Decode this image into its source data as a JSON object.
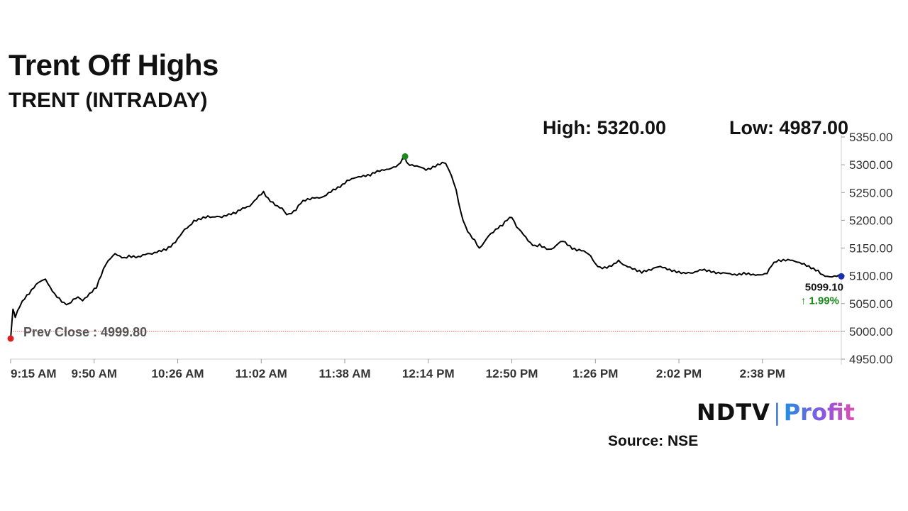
{
  "header": {
    "title": "Trent Off Highs",
    "subtitle": "TRENT (INTRADAY)"
  },
  "stats": {
    "high_label": "High: 5320.00",
    "low_label": "Low: 4987.00"
  },
  "chart_data": {
    "type": "line",
    "title": "Trent Off Highs",
    "subtitle": "TRENT (INTRADAY)",
    "xlabel": "",
    "ylabel": "",
    "x_ticks": [
      "9:15 AM",
      "9:50 AM",
      "10:26 AM",
      "11:02 AM",
      "11:38 AM",
      "12:14 PM",
      "12:50 PM",
      "1:26 PM",
      "2:02 PM",
      "2:38 PM"
    ],
    "y_ticks": [
      "4950.00",
      "5000.00",
      "5050.00",
      "5100.00",
      "5150.00",
      "5200.00",
      "5250.00",
      "5300.00",
      "5350.00"
    ],
    "ylim": [
      4950,
      5350
    ],
    "x_range_minutes": [
      0,
      358
    ],
    "grid": false,
    "series": [
      {
        "line_color": "#000000",
        "points": [
          [
            0,
            4987
          ],
          [
            1,
            5040
          ],
          [
            2,
            5025
          ],
          [
            4,
            5045
          ],
          [
            6,
            5058
          ],
          [
            8,
            5067
          ],
          [
            10,
            5078
          ],
          [
            12,
            5088
          ],
          [
            15,
            5094
          ],
          [
            17,
            5080
          ],
          [
            19,
            5068
          ],
          [
            21,
            5060
          ],
          [
            23,
            5052
          ],
          [
            25,
            5050
          ],
          [
            27,
            5058
          ],
          [
            29,
            5062
          ],
          [
            31,
            5055
          ],
          [
            33,
            5062
          ],
          [
            35,
            5070
          ],
          [
            37,
            5078
          ],
          [
            39,
            5100
          ],
          [
            41,
            5120
          ],
          [
            43,
            5131
          ],
          [
            45,
            5140
          ],
          [
            47,
            5136
          ],
          [
            49,
            5133
          ],
          [
            51,
            5137
          ],
          [
            53,
            5136
          ],
          [
            55,
            5135
          ],
          [
            57,
            5138
          ],
          [
            59,
            5140
          ],
          [
            61,
            5139
          ],
          [
            63,
            5142
          ],
          [
            65,
            5144
          ],
          [
            67,
            5146
          ],
          [
            69,
            5152
          ],
          [
            71,
            5160
          ],
          [
            73,
            5172
          ],
          [
            75,
            5184
          ],
          [
            77,
            5190
          ],
          [
            79,
            5200
          ],
          [
            81,
            5203
          ],
          [
            83,
            5206
          ],
          [
            85,
            5208
          ],
          [
            87,
            5206
          ],
          [
            89,
            5207
          ],
          [
            91,
            5205
          ],
          [
            93,
            5208
          ],
          [
            95,
            5210
          ],
          [
            97,
            5212
          ],
          [
            99,
            5218
          ],
          [
            101,
            5222
          ],
          [
            103,
            5225
          ],
          [
            105,
            5235
          ],
          [
            107,
            5245
          ],
          [
            109,
            5252
          ],
          [
            111,
            5240
          ],
          [
            113,
            5233
          ],
          [
            115,
            5226
          ],
          [
            117,
            5222
          ],
          [
            119,
            5210
          ],
          [
            121,
            5212
          ],
          [
            123,
            5218
          ],
          [
            125,
            5230
          ],
          [
            127,
            5235
          ],
          [
            129,
            5237
          ],
          [
            131,
            5240
          ],
          [
            133,
            5240
          ],
          [
            135,
            5243
          ],
          [
            137,
            5250
          ],
          [
            139,
            5256
          ],
          [
            141,
            5260
          ],
          [
            143,
            5265
          ],
          [
            145,
            5272
          ],
          [
            147,
            5275
          ],
          [
            149,
            5277
          ],
          [
            151,
            5278
          ],
          [
            153,
            5279
          ],
          [
            155,
            5280
          ],
          [
            157,
            5285
          ],
          [
            159,
            5288
          ],
          [
            161,
            5290
          ],
          [
            163,
            5292
          ],
          [
            165,
            5296
          ],
          [
            167,
            5300
          ],
          [
            169,
            5312
          ],
          [
            170,
            5315
          ],
          [
            171,
            5303
          ],
          [
            173,
            5300
          ],
          [
            175,
            5298
          ],
          [
            177,
            5295
          ],
          [
            179,
            5290
          ],
          [
            181,
            5292
          ],
          [
            183,
            5296
          ],
          [
            185,
            5300
          ],
          [
            187,
            5303
          ],
          [
            188,
            5298
          ],
          [
            190,
            5280
          ],
          [
            192,
            5255
          ],
          [
            194,
            5215
          ],
          [
            196,
            5190
          ],
          [
            198,
            5175
          ],
          [
            200,
            5165
          ],
          [
            202,
            5150
          ],
          [
            204,
            5160
          ],
          [
            206,
            5172
          ],
          [
            208,
            5178
          ],
          [
            210,
            5185
          ],
          [
            212,
            5190
          ],
          [
            214,
            5200
          ],
          [
            216,
            5205
          ],
          [
            218,
            5188
          ],
          [
            220,
            5180
          ],
          [
            222,
            5170
          ],
          [
            224,
            5160
          ],
          [
            226,
            5155
          ],
          [
            228,
            5157
          ],
          [
            230,
            5152
          ],
          [
            232,
            5148
          ],
          [
            234,
            5150
          ],
          [
            236,
            5158
          ],
          [
            238,
            5162
          ],
          [
            240,
            5155
          ],
          [
            242,
            5148
          ],
          [
            244,
            5145
          ],
          [
            246,
            5145
          ],
          [
            248,
            5142
          ],
          [
            250,
            5136
          ],
          [
            252,
            5122
          ],
          [
            254,
            5116
          ],
          [
            256,
            5116
          ],
          [
            258,
            5118
          ],
          [
            260,
            5122
          ],
          [
            262,
            5128
          ],
          [
            264,
            5120
          ],
          [
            266,
            5116
          ],
          [
            268,
            5112
          ],
          [
            270,
            5108
          ],
          [
            272,
            5105
          ],
          [
            274,
            5108
          ],
          [
            276,
            5110
          ],
          [
            278,
            5115
          ],
          [
            280,
            5117
          ],
          [
            282,
            5115
          ],
          [
            284,
            5112
          ],
          [
            286,
            5110
          ],
          [
            288,
            5108
          ],
          [
            290,
            5106
          ],
          [
            292,
            5106
          ],
          [
            294,
            5105
          ],
          [
            296,
            5108
          ],
          [
            298,
            5110
          ],
          [
            300,
            5108
          ],
          [
            302,
            5106
          ],
          [
            304,
            5104
          ],
          [
            306,
            5104
          ],
          [
            308,
            5105
          ],
          [
            310,
            5104
          ],
          [
            312,
            5103
          ],
          [
            314,
            5104
          ],
          [
            316,
            5106
          ],
          [
            318,
            5105
          ],
          [
            320,
            5103
          ],
          [
            322,
            5102
          ],
          [
            324,
            5102
          ],
          [
            326,
            5104
          ],
          [
            328,
            5118
          ],
          [
            330,
            5125
          ],
          [
            332,
            5126
          ],
          [
            334,
            5127
          ],
          [
            336,
            5128
          ],
          [
            338,
            5126
          ],
          [
            340,
            5124
          ],
          [
            342,
            5122
          ],
          [
            344,
            5118
          ],
          [
            346,
            5114
          ],
          [
            348,
            5110
          ],
          [
            350,
            5102
          ],
          [
            352,
            5099
          ],
          [
            354,
            5098
          ],
          [
            356,
            5099
          ],
          [
            358,
            5099.1
          ]
        ]
      }
    ],
    "reference_line": {
      "label": "Prev Close : 4999.80",
      "value": 4999.8,
      "color": "#e05050"
    },
    "last_price_label": "5099.10",
    "change_label": "↑ 1.99%",
    "change_color": "#1a8a1a",
    "marker_colors": {
      "high": "#1a8a1a",
      "low": "#e02020",
      "last": "#1a2fb0"
    },
    "high_point": [
      170,
      5315
    ],
    "low_point": [
      0,
      4987
    ],
    "last_point": [
      358,
      5099.1
    ]
  },
  "branding": {
    "ndtv": "NDTV",
    "separator": "|",
    "profit": "Profit",
    "source": "Source: NSE"
  }
}
